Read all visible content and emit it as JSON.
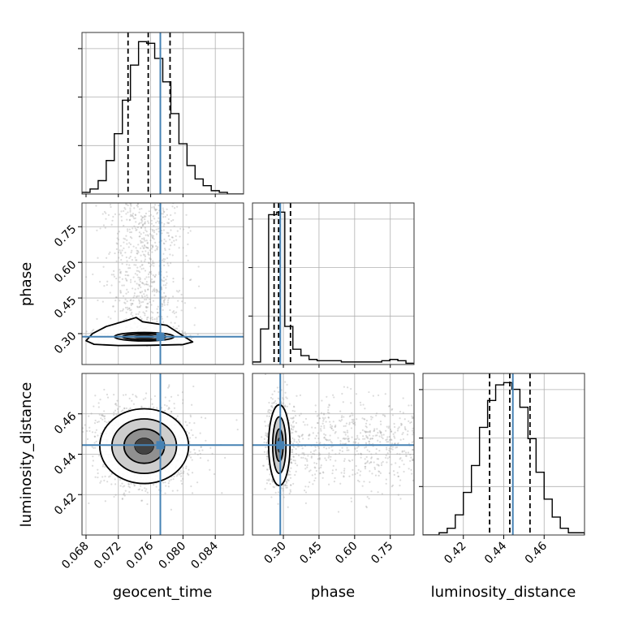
{
  "chart_data": {
    "type": "corner",
    "parameters": [
      "geocent_time",
      "phase",
      "luminosity_distance"
    ],
    "colors": {
      "truth": "#4682b4",
      "hist": "#000000",
      "grid": "#b0b0b0",
      "scatter": "#9a9a9a"
    },
    "axes": {
      "geocent_time": {
        "label": "geocent_time",
        "range": [
          0.0675,
          0.0875
        ],
        "ticks": [
          0.068,
          0.072,
          0.076,
          0.08,
          0.084
        ],
        "tick_labels": [
          "0.068",
          "0.072",
          "0.076",
          "0.080",
          "0.084"
        ]
      },
      "phase": {
        "label": "phase",
        "range": [
          0.17,
          0.85
        ],
        "ticks": [
          0.3,
          0.45,
          0.6,
          0.75
        ],
        "tick_labels": [
          "0.30",
          "0.45",
          "0.60",
          "0.75"
        ]
      },
      "luminosity_distance": {
        "label": "luminosity_distance",
        "range": [
          0.4,
          0.48
        ],
        "ticks": [
          0.42,
          0.44,
          0.46
        ],
        "tick_labels": [
          "0.42",
          "0.44",
          "0.46"
        ]
      }
    },
    "truths": {
      "geocent_time": 0.0772,
      "phase": 0.287,
      "luminosity_distance": 0.4445
    },
    "quantiles": {
      "geocent_time": [
        0.0732,
        0.0757,
        0.0784
      ],
      "phase": [
        0.261,
        0.28,
        0.33
      ],
      "luminosity_distance": [
        0.433,
        0.443,
        0.453
      ]
    },
    "histograms": {
      "geocent_time": {
        "edges": [
          0.0675,
          0.0685,
          0.0695,
          0.0705,
          0.0715,
          0.0725,
          0.0735,
          0.0745,
          0.0755,
          0.0765,
          0.0775,
          0.0785,
          0.0795,
          0.0805,
          0.0815,
          0.0825,
          0.0835,
          0.0845,
          0.0855,
          0.0865,
          0.0875
        ],
        "counts": [
          1,
          3,
          8,
          20,
          36,
          56,
          77,
          91,
          90,
          81,
          67,
          48,
          30,
          17,
          9,
          5,
          2,
          1,
          0,
          0
        ]
      },
      "phase": {
        "edges": [
          0.17,
          0.204,
          0.238,
          0.272,
          0.306,
          0.34,
          0.374,
          0.408,
          0.442,
          0.476,
          0.51,
          0.544,
          0.578,
          0.612,
          0.646,
          0.68,
          0.714,
          0.748,
          0.782,
          0.816,
          0.85
        ],
        "counts": [
          2,
          28,
          118,
          120,
          30,
          12,
          7,
          4,
          3,
          3,
          3,
          2,
          2,
          2,
          2,
          2,
          3,
          4,
          3,
          1
        ]
      },
      "luminosity_distance": {
        "edges": [
          0.4,
          0.404,
          0.408,
          0.412,
          0.416,
          0.42,
          0.424,
          0.428,
          0.432,
          0.436,
          0.44,
          0.444,
          0.448,
          0.452,
          0.456,
          0.46,
          0.464,
          0.468,
          0.472,
          0.476,
          0.48
        ],
        "counts": [
          0,
          0,
          1,
          3,
          9,
          19,
          31,
          48,
          60,
          67,
          68,
          65,
          57,
          43,
          28,
          16,
          8,
          3,
          1,
          1
        ]
      }
    },
    "contours_2d": [
      {
        "x": "geocent_time",
        "y": "phase",
        "center": [
          0.0752,
          0.287
        ],
        "levels": [
          {
            "rx": 0.0049,
            "ry": 0.024
          },
          {
            "rx": 0.0037,
            "ry": 0.018
          },
          {
            "rx": 0.0027,
            "ry": 0.012
          },
          {
            "rx": 0.0013,
            "ry": 0.007
          }
        ],
        "outer": [
          [
            0.068,
            0.27
          ],
          [
            0.069,
            0.255
          ],
          [
            0.072,
            0.25
          ],
          [
            0.076,
            0.251
          ],
          [
            0.08,
            0.254
          ],
          [
            0.0812,
            0.265
          ],
          [
            0.0798,
            0.295
          ],
          [
            0.078,
            0.335
          ],
          [
            0.075,
            0.35
          ],
          [
            0.0742,
            0.368
          ],
          [
            0.073,
            0.355
          ],
          [
            0.0705,
            0.33
          ],
          [
            0.0688,
            0.3
          ],
          [
            0.068,
            0.27
          ]
        ]
      },
      {
        "x": "geocent_time",
        "y": "luminosity_distance",
        "center": [
          0.0752,
          0.444
        ],
        "levels": [
          {
            "rx": 0.0055,
            "ry": 0.0185
          },
          {
            "rx": 0.004,
            "ry": 0.0135
          },
          {
            "rx": 0.0025,
            "ry": 0.0085
          },
          {
            "rx": 0.0012,
            "ry": 0.004
          }
        ]
      },
      {
        "x": "phase",
        "y": "luminosity_distance",
        "center": [
          0.283,
          0.4445
        ],
        "levels": [
          {
            "rx": 0.045,
            "ry": 0.02
          },
          {
            "rx": 0.028,
            "ry": 0.014
          },
          {
            "rx": 0.016,
            "ry": 0.008
          },
          {
            "rx": 0.008,
            "ry": 0.0035
          }
        ]
      }
    ]
  }
}
